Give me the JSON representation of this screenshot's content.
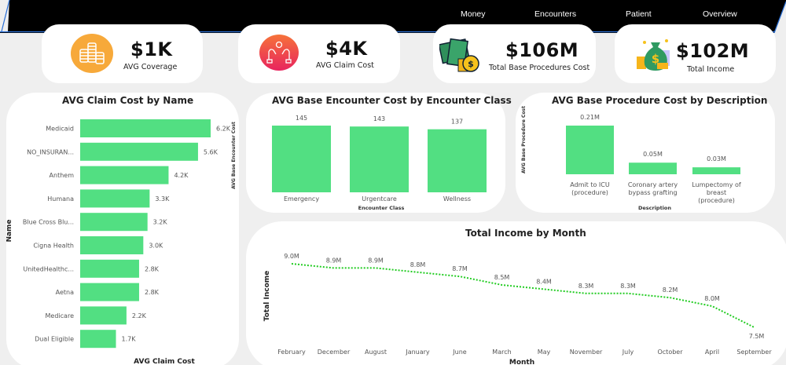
{
  "nav": {
    "items": [
      "Money",
      "Encounters",
      "Patient",
      "Overview"
    ]
  },
  "kpis": [
    {
      "value": "$1K",
      "label": "AVG Coverage",
      "icon": "coins-icon"
    },
    {
      "value": "$4K",
      "label": "AVG Claim Cost",
      "icon": "hands-care-icon"
    },
    {
      "value": "$106M",
      "label": "Total Base Procedures Cost",
      "icon": "cash-icon"
    },
    {
      "value": "$102M",
      "label": "Total Income",
      "icon": "money-bag-icon"
    }
  ],
  "colors": {
    "bar": "#52df82",
    "line": "#22cc22",
    "header": "#000000",
    "accent_edge": "#2b6fd6"
  },
  "chart_data": [
    {
      "type": "bar",
      "orientation": "horizontal",
      "title": "AVG Claim Cost by Name",
      "xlabel": "AVG Claim Cost",
      "ylabel": "Name",
      "categories": [
        "Medicaid",
        "NO_INSURAN...",
        "Anthem",
        "Humana",
        "Blue Cross Blu...",
        "Cigna Health",
        "UnitedHealthc...",
        "Aetna",
        "Medicare",
        "Dual Eligible"
      ],
      "values": [
        6200,
        5600,
        4200,
        3300,
        3200,
        3000,
        2800,
        2800,
        2200,
        1700
      ],
      "labels": [
        "6.2K",
        "5.6K",
        "4.2K",
        "3.3K",
        "3.2K",
        "3.0K",
        "2.8K",
        "2.8K",
        "2.2K",
        "1.7K"
      ],
      "side_label": "AVG Base Encounter Cost"
    },
    {
      "type": "bar",
      "title": "AVG Base Encounter Cost by Encounter Class",
      "xlabel": "Encounter Class",
      "ylabel": "",
      "categories": [
        "Emergency",
        "Urgentcare",
        "Wellness"
      ],
      "values": [
        145,
        143,
        137
      ],
      "labels": [
        "145",
        "143",
        "137"
      ]
    },
    {
      "type": "bar",
      "title": "AVG Base Procedure Cost by Description",
      "xlabel": "Description",
      "ylabel": "AVG Base Procedure Cost",
      "categories": [
        [
          "Admit to ICU",
          "(procedure)"
        ],
        [
          "Coronary artery",
          "bypass grafting"
        ],
        [
          "Lumpectomy of",
          "breast",
          "(procedure)"
        ]
      ],
      "values": [
        0.21,
        0.05,
        0.03
      ],
      "labels": [
        "0.21M",
        "0.05M",
        "0.03M"
      ],
      "unit": "M"
    },
    {
      "type": "line",
      "title": "Total Income by Month",
      "xlabel": "Month",
      "ylabel": "Total Income",
      "categories": [
        "February",
        "December",
        "August",
        "January",
        "June",
        "March",
        "May",
        "November",
        "July",
        "October",
        "April",
        "September"
      ],
      "values": [
        9.0,
        8.9,
        8.9,
        8.8,
        8.7,
        8.5,
        8.4,
        8.3,
        8.3,
        8.2,
        8.0,
        7.5
      ],
      "labels": [
        "9.0M",
        "8.9M",
        "8.9M",
        "8.8M",
        "8.7M",
        "8.5M",
        "8.4M",
        "8.3M",
        "8.3M",
        "8.2M",
        "8.0M",
        "7.5M"
      ],
      "unit": "M",
      "line_style": "dotted"
    }
  ]
}
